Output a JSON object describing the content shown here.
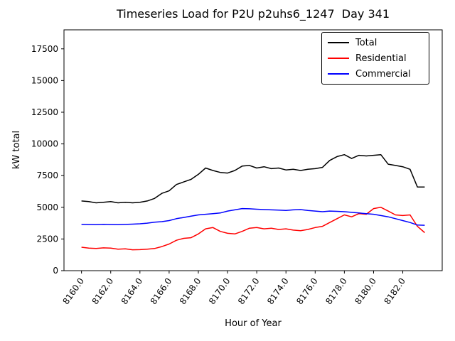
{
  "figure": {
    "title": "Timeseries Load for P2U p2uhs6_1247  Day 341",
    "xlabel": "Hour of Year",
    "ylabel": "kW total"
  },
  "legend": {
    "items": [
      {
        "label": "Total",
        "color": "#000000"
      },
      {
        "label": "Residential",
        "color": "#ff0000"
      },
      {
        "label": "Commercial",
        "color": "#0000ff"
      }
    ]
  },
  "chart_data": {
    "type": "line",
    "title": "Timeseries Load for P2U p2uhs6_1247  Day 341",
    "xlabel": "Hour of Year",
    "ylabel": "kW total",
    "grid": false,
    "legend_position": "upper right",
    "xlim": [
      8158.8,
      8184.7
    ],
    "ylim": [
      0,
      19000
    ],
    "x_ticks": [
      8160,
      8162,
      8164,
      8166,
      8168,
      8170,
      8172,
      8174,
      8176,
      8178,
      8180,
      8182
    ],
    "x_tick_labels": [
      "8160.0",
      "8162.0",
      "8164.0",
      "8166.0",
      "8168.0",
      "8170.0",
      "8172.0",
      "8174.0",
      "8176.0",
      "8178.0",
      "8180.0",
      "8182.0"
    ],
    "y_ticks": [
      0,
      2500,
      5000,
      7500,
      10000,
      12500,
      15000,
      17500
    ],
    "x": [
      8160.0,
      8160.5,
      8161.0,
      8161.5,
      8162.0,
      8162.5,
      8163.0,
      8163.5,
      8164.0,
      8164.5,
      8165.0,
      8165.5,
      8166.0,
      8166.5,
      8167.0,
      8167.5,
      8168.0,
      8168.5,
      8169.0,
      8169.5,
      8170.0,
      8170.5,
      8171.0,
      8171.5,
      8172.0,
      8172.5,
      8173.0,
      8173.5,
      8174.0,
      8174.5,
      8175.0,
      8175.5,
      8176.0,
      8176.5,
      8177.0,
      8177.5,
      8178.0,
      8178.5,
      8179.0,
      8179.5,
      8180.0,
      8180.5,
      8181.0,
      8181.5,
      8182.0,
      8182.5,
      8183.0,
      8183.5
    ],
    "series": [
      {
        "name": "Total",
        "color": "#000000",
        "values": [
          5500,
          5450,
          5350,
          5400,
          5450,
          5350,
          5400,
          5350,
          5400,
          5500,
          5700,
          6100,
          6300,
          6800,
          7000,
          7200,
          7600,
          8100,
          7900,
          7750,
          7700,
          7900,
          8250,
          8300,
          8100,
          8200,
          8050,
          8100,
          7950,
          8000,
          7900,
          8000,
          8050,
          8150,
          8700,
          9000,
          9150,
          8850,
          9100,
          9050,
          9100,
          9150,
          8400,
          8300,
          8200,
          8000,
          6600,
          6600
        ]
      },
      {
        "name": "Residential",
        "color": "#ff0000",
        "values": [
          1850,
          1780,
          1750,
          1800,
          1780,
          1700,
          1720,
          1650,
          1660,
          1700,
          1750,
          1900,
          2100,
          2400,
          2550,
          2600,
          2900,
          3300,
          3400,
          3100,
          2950,
          2900,
          3100,
          3350,
          3400,
          3300,
          3350,
          3250,
          3300,
          3200,
          3150,
          3250,
          3400,
          3500,
          3800,
          4100,
          4400,
          4250,
          4500,
          4450,
          4900,
          5000,
          4700,
          4400,
          4350,
          4400,
          3500,
          3000
        ]
      },
      {
        "name": "Commercial",
        "color": "#0000ff",
        "values": [
          3650,
          3640,
          3630,
          3650,
          3640,
          3630,
          3650,
          3670,
          3700,
          3750,
          3820,
          3870,
          3950,
          4100,
          4200,
          4300,
          4400,
          4450,
          4500,
          4550,
          4700,
          4800,
          4900,
          4880,
          4850,
          4820,
          4800,
          4780,
          4750,
          4800,
          4820,
          4750,
          4700,
          4650,
          4700,
          4680,
          4650,
          4600,
          4550,
          4500,
          4450,
          4350,
          4250,
          4100,
          3950,
          3800,
          3600,
          3580
        ]
      }
    ]
  }
}
